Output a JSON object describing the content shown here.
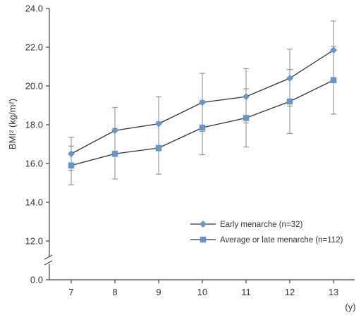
{
  "chart_data": {
    "type": "line",
    "ylabel": "BMI² (kg/m²)",
    "xlabel": "",
    "x_unit": "(y)",
    "x": [
      7,
      8,
      9,
      10,
      11,
      12,
      13
    ],
    "x_ticks": [
      "7",
      "8",
      "9",
      "10",
      "11",
      "12",
      "13"
    ],
    "y_ticks": [
      "24.0",
      "22.0",
      "20.0",
      "18.0",
      "16.0",
      "14.0",
      "12.0"
    ],
    "y_break_tick": "0.0",
    "ylim": [
      12,
      24
    ],
    "axis_break": true,
    "grid": false,
    "legend_position": "lower-right",
    "series": [
      {
        "name": "Early menarche (n=32)",
        "marker": "diamond",
        "color": "#6a95c9",
        "values": [
          16.5,
          17.7,
          18.05,
          19.15,
          19.45,
          20.4,
          21.85
        ],
        "error_low": [
          15.65,
          16.5,
          16.65,
          17.65,
          18.1,
          18.95,
          20.35
        ],
        "error_high": [
          17.35,
          18.9,
          19.45,
          20.65,
          20.9,
          21.9,
          23.35
        ]
      },
      {
        "name": "Average or late menarche (n=112)",
        "marker": "square",
        "color": "#6a95c9",
        "values": [
          15.9,
          16.5,
          16.8,
          17.85,
          18.35,
          19.2,
          20.3
        ],
        "error_low": [
          14.9,
          15.2,
          15.45,
          16.45,
          16.85,
          17.55,
          18.55
        ],
        "error_high": [
          16.9,
          17.8,
          18.15,
          19.25,
          19.85,
          20.85,
          22.05
        ]
      }
    ],
    "line_color": "#333333"
  }
}
